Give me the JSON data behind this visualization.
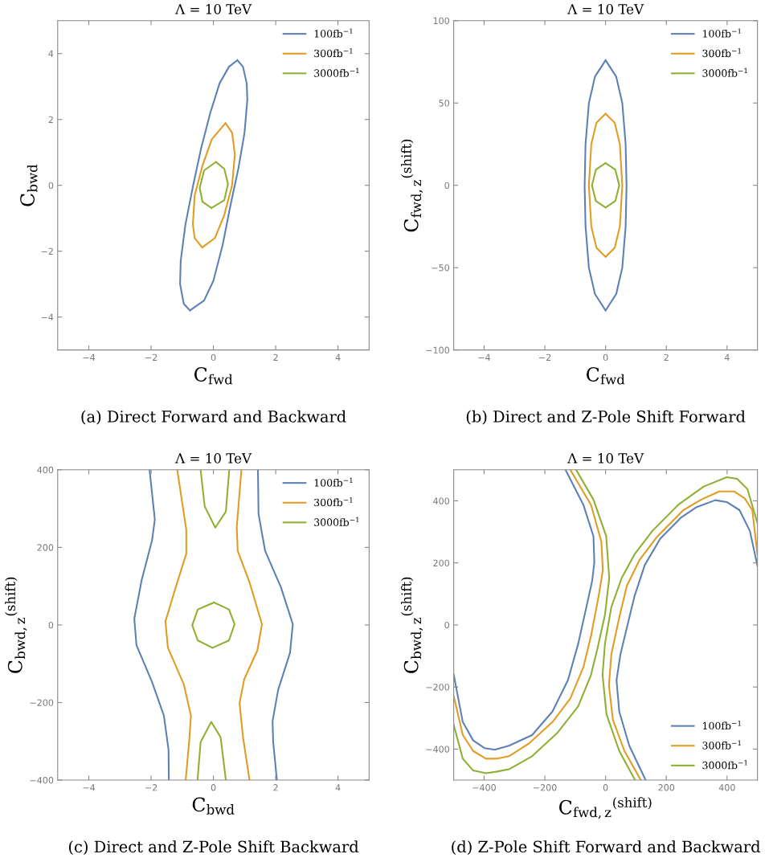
{
  "chart_data": [
    {
      "type": "line",
      "title": "Λ = 10 TeV",
      "xlabel": "C$_{fwd}$",
      "ylabel": "C$_{bwd}$",
      "xlim": [
        -5,
        5
      ],
      "ylim": [
        -5,
        5
      ],
      "xticks": [
        -4,
        -2,
        0,
        2,
        4
      ],
      "yticks": [
        -4,
        -2,
        0,
        2,
        4
      ],
      "legend": "top right",
      "annotations": [
        "(a) Direct Forward and Backward"
      ],
      "series": [
        {
          "name": "100fb$^{−1}$",
          "color": "#5e81b5",
          "x": [
            0.77,
            0.95,
            1.07,
            1.09,
            1.0,
            0.8,
            0.55,
            0.3,
            0.0,
            -0.3,
            -0.75,
            null,
            -0.75,
            -0.95,
            -1.07,
            -1.05,
            -0.9,
            -0.65,
            -0.4,
            -0.1,
            0.2,
            0.5,
            0.77
          ],
          "values": [
            3.8,
            3.6,
            3.1,
            2.6,
            1.6,
            0.5,
            -0.6,
            -1.8,
            -2.9,
            -3.5,
            -3.8,
            null,
            -3.8,
            -3.6,
            -3.0,
            -2.3,
            -1.2,
            0.0,
            1.1,
            2.2,
            3.1,
            3.6,
            3.8
          ]
        },
        {
          "name": "300fb$^{−1}$",
          "color": "#e19c24",
          "x": [
            0.39,
            0.6,
            0.69,
            0.6,
            0.35,
            0.05,
            -0.36,
            null,
            -0.36,
            -0.6,
            -0.66,
            -0.6,
            -0.35,
            -0.05,
            0.39
          ],
          "values": [
            1.89,
            1.6,
            0.94,
            0.0,
            -0.9,
            -1.6,
            -1.89,
            null,
            -1.89,
            -1.6,
            -1.18,
            -0.3,
            0.6,
            1.4,
            1.89
          ]
        },
        {
          "name": "3000fb$^{−1}$",
          "color": "#8fb032",
          "x": [
            0.08,
            0.35,
            0.47,
            0.35,
            -0.06,
            null,
            -0.06,
            -0.35,
            -0.44,
            -0.3,
            0.08
          ],
          "values": [
            0.71,
            0.5,
            0.04,
            -0.45,
            -0.69,
            null,
            -0.69,
            -0.5,
            -0.08,
            0.45,
            0.71
          ]
        }
      ]
    },
    {
      "type": "line",
      "title": "Λ = 10 TeV",
      "xlabel": "C$_{fwd}$",
      "ylabel": "C$_{fwd,z}$$^{(shift)}$",
      "xlim": [
        -5,
        5
      ],
      "ylim": [
        -100,
        100
      ],
      "xticks": [
        -4,
        -2,
        0,
        2,
        4
      ],
      "yticks": [
        -100,
        -50,
        0,
        50,
        100
      ],
      "legend": "top right",
      "annotations": [
        "(b) Direct and Z-Pole Shift Forward"
      ],
      "series": [
        {
          "name": "100fb$^{−1}$",
          "color": "#5e81b5",
          "x": [
            0,
            0.35,
            0.55,
            0.66,
            0.69,
            0.66,
            0.55,
            0.35,
            0,
            null,
            0,
            -0.35,
            -0.55,
            -0.66,
            -0.69,
            -0.66,
            -0.55,
            -0.35,
            0
          ],
          "values": [
            76,
            66,
            50,
            25,
            0,
            -25,
            -50,
            -66,
            -76,
            null,
            -76,
            -66,
            -50,
            -25,
            0,
            25,
            50,
            66,
            76
          ]
        },
        {
          "name": "300fb$^{−1}$",
          "color": "#e19c24",
          "x": [
            0,
            0.3,
            0.47,
            0.55,
            0.47,
            0.3,
            0,
            null,
            0,
            -0.3,
            -0.47,
            -0.55,
            -0.47,
            -0.3,
            0
          ],
          "values": [
            43.5,
            38,
            25,
            0,
            -25,
            -38,
            -43.5,
            null,
            -43.5,
            -38,
            -25,
            0,
            25,
            38,
            43.5
          ]
        },
        {
          "name": "3000fb$^{−1}$",
          "color": "#8fb032",
          "x": [
            0,
            0.32,
            0.45,
            0.32,
            0,
            null,
            0,
            -0.32,
            -0.45,
            -0.32,
            0
          ],
          "values": [
            13.5,
            9.5,
            0,
            -9.5,
            -13.5,
            null,
            -13.5,
            -9.5,
            0,
            9.5,
            13.5
          ]
        }
      ]
    },
    {
      "type": "line",
      "title": "Λ = 10 TeV",
      "xlabel": "C$_{bwd}$",
      "ylabel": "C$_{bwd,z}$$^{(shift)}$",
      "xlim": [
        -5,
        5
      ],
      "ylim": [
        -400,
        400
      ],
      "xticks": [
        -4,
        -2,
        0,
        2,
        4
      ],
      "yticks": [
        -400,
        -200,
        0,
        200,
        400
      ],
      "legend": "top right",
      "annotations": [
        "(c) Direct and Z-Pole Shift Backward"
      ],
      "series": [
        {
          "name": "100fb$^{−1}$",
          "color": "#5e81b5",
          "x": [
            -2.05,
            -1.88,
            -1.97,
            -2.3,
            -2.54,
            -2.47,
            -1.97,
            -1.59,
            -1.44,
            -1.43,
            null,
            1.43,
            1.45,
            1.66,
            2.17,
            2.55,
            2.46,
            2.08,
            1.9,
            1.92,
            2.04
          ],
          "values": [
            400,
            272,
            218,
            117,
            16,
            -52,
            -147,
            -234,
            -322,
            -400,
            null,
            400,
            286,
            191,
            97,
            2,
            -72,
            -167,
            -248,
            -302,
            -400
          ]
        },
        {
          "name": "300fb$^{−1}$",
          "color": "#e19c24",
          "x": [
            -1.16,
            -0.87,
            -0.87,
            -1.21,
            -1.54,
            -1.46,
            -0.95,
            -0.72,
            -0.78,
            -0.89,
            null,
            0.9,
            0.75,
            0.78,
            1.16,
            1.56,
            1.41,
            0.99,
            0.84,
            0.95,
            1.16
          ],
          "values": [
            400,
            245,
            184,
            97,
            9,
            -59,
            -153,
            -234,
            -302,
            -400,
            null,
            400,
            252,
            191,
            110,
            2,
            -66,
            -140,
            -201,
            -289,
            -400
          ]
        },
        {
          "name": "3000fb$^{−1}$",
          "color": "#8fb032",
          "x": [
            -0.41,
            -0.28,
            0.06,
            0.4,
            0.51,
            null,
            0.02,
            0.5,
            0.68,
            0.5,
            -0.03,
            null,
            -0.03,
            -0.5,
            -0.68,
            -0.5,
            0.02,
            null,
            -0.51,
            -0.41,
            -0.07,
            0.23,
            0.4
          ],
          "values": [
            400,
            306,
            251,
            292,
            400,
            null,
            58,
            40,
            2,
            -40,
            -59,
            null,
            -59,
            -40,
            -1,
            40,
            58,
            null,
            -400,
            -302,
            -250,
            -289,
            -400
          ]
        }
      ]
    },
    {
      "type": "line",
      "title": "Λ = 10 TeV",
      "xlabel": "C$_{fwd,z}$$^{(shift)}$",
      "ylabel": "C$_{bwd,z}$$^{(shift)}$",
      "xlim": [
        -500,
        500
      ],
      "ylim": [
        -500,
        500
      ],
      "xticks": [
        -400,
        -200,
        0,
        200,
        400
      ],
      "yticks": [
        -400,
        -200,
        0,
        200,
        400
      ],
      "legend": "lower right",
      "annotations": [
        "(d) Z-Pole Shift Forward and Backward"
      ],
      "series": [
        {
          "name": "100fb$^{−1}$",
          "color": "#5e81b5",
          "x": [
            -132,
            -73,
            -40,
            -37,
            -44,
            -65,
            -90,
            -124,
            -175,
            -242,
            -318,
            -365,
            -398,
            -436,
            -470,
            -500,
            null,
            132,
            78,
            45,
            36,
            49,
            70,
            95,
            129,
            180,
            247,
            298,
            361,
            399,
            441,
            475,
            500
          ],
          "values": [
            500,
            387,
            286,
            202,
            143,
            50,
            -60,
            -178,
            -279,
            -355,
            -389,
            -402,
            -397,
            -372,
            -313,
            -160,
            null,
            -500,
            -389,
            -279,
            -178,
            -94,
            -9,
            92,
            193,
            278,
            345,
            379,
            402,
            396,
            370,
            303,
            190
          ]
        },
        {
          "name": "300fb$^{−1}$",
          "color": "#e19c24",
          "x": [
            -116,
            -48,
            -14,
            -9,
            -23,
            -48,
            -73,
            -116,
            -175,
            -251,
            -318,
            -360,
            -394,
            -436,
            -470,
            -500,
            null,
            116,
            62,
            24,
            11,
            19,
            45,
            70,
            112,
            171,
            256,
            315,
            374,
            424,
            458,
            483,
            500
          ],
          "values": [
            500,
            387,
            269,
            176,
            92,
            -35,
            -136,
            -237,
            -313,
            -381,
            -423,
            -431,
            -431,
            -406,
            -355,
            -229,
            null,
            -500,
            -406,
            -305,
            -195,
            -94,
            24,
            126,
            210,
            286,
            370,
            404,
            430,
            430,
            408,
            370,
            227
          ]
        },
        {
          "name": "3000fb$^{−1}$",
          "color": "#8fb032",
          "x": [
            -97,
            -40,
            2,
            12,
            -2,
            -27,
            -48,
            -90,
            -158,
            -242,
            -318,
            -360,
            -394,
            -436,
            -470,
            -500,
            null,
            97,
            45,
            3,
            -10,
            -2,
            19,
            53,
            95,
            154,
            239,
            323,
            399,
            433,
            467,
            500
          ],
          "values": [
            500,
            404,
            286,
            151,
            33,
            -77,
            -161,
            -262,
            -347,
            -423,
            -465,
            -473,
            -478,
            -469,
            -431,
            -322,
            null,
            -500,
            -406,
            -288,
            -161,
            -60,
            58,
            151,
            227,
            303,
            387,
            446,
            476,
            471,
            438,
            328
          ]
        }
      ]
    }
  ]
}
